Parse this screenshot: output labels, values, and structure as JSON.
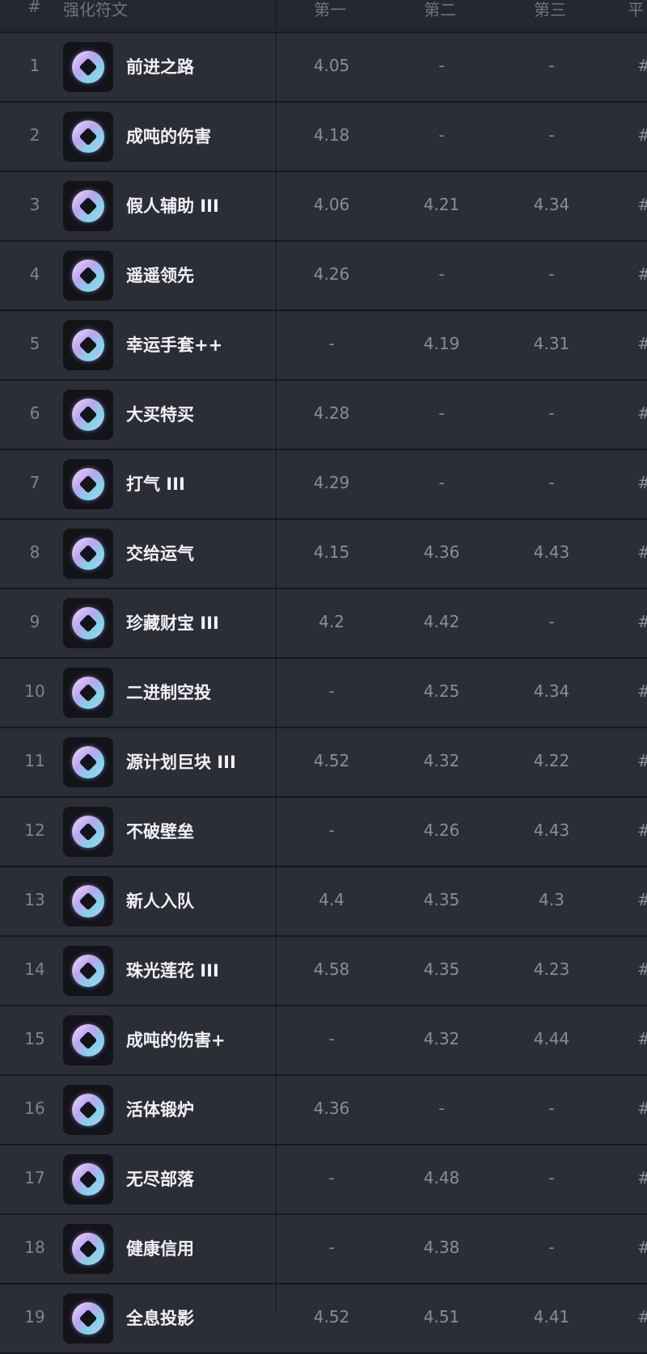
{
  "header": {
    "rank": "#",
    "name": "强化符文",
    "first": "第一",
    "second": "第二",
    "third": "第三",
    "avg": "平"
  },
  "rows": [
    {
      "rank": "1",
      "name": "前进之路",
      "icon": "arrow-up-emblem-icon",
      "first": "4.05",
      "second": "-",
      "third": "-",
      "avg": "#"
    },
    {
      "rank": "2",
      "name": "成吨的伤害",
      "icon": "swirl-icon",
      "first": "4.18",
      "second": "-",
      "third": "-",
      "avg": "#"
    },
    {
      "rank": "3",
      "name": "假人辅助 III",
      "icon": "dummy-icon",
      "first": "4.06",
      "second": "4.21",
      "third": "4.34",
      "avg": "#"
    },
    {
      "rank": "4",
      "name": "遥遥领先",
      "icon": "money-bag-slash-icon",
      "first": "4.26",
      "second": "-",
      "third": "-",
      "avg": "#"
    },
    {
      "rank": "5",
      "name": "幸运手套++",
      "icon": "paw-glove-icon",
      "first": "-",
      "second": "4.19",
      "third": "4.31",
      "avg": "#"
    },
    {
      "rank": "6",
      "name": "大买特买",
      "icon": "coin-plus-icon",
      "first": "4.28",
      "second": "-",
      "third": "-",
      "avg": "#"
    },
    {
      "rank": "7",
      "name": "打气 III",
      "icon": "burst-icon",
      "first": "4.29",
      "second": "-",
      "third": "-",
      "avg": "#"
    },
    {
      "rank": "8",
      "name": "交给运气",
      "icon": "dice-paw-icon",
      "first": "4.15",
      "second": "4.36",
      "third": "4.43",
      "avg": "#"
    },
    {
      "rank": "9",
      "name": "珍藏财宝 III",
      "icon": "mystery-box-icon",
      "first": "4.2",
      "second": "4.42",
      "third": "-",
      "avg": "#"
    },
    {
      "rank": "10",
      "name": "二进制空投",
      "icon": "parachute-box-icon",
      "first": "-",
      "second": "4.25",
      "third": "4.34",
      "avg": "#"
    },
    {
      "rank": "11",
      "name": "源计划巨块 III",
      "icon": "heart-box-icon",
      "first": "4.52",
      "second": "4.32",
      "third": "4.22",
      "avg": "#"
    },
    {
      "rank": "12",
      "name": "不破壁垒",
      "icon": "shield-icon",
      "first": "-",
      "second": "4.26",
      "third": "4.43",
      "avg": "#"
    },
    {
      "rank": "13",
      "name": "新人入队",
      "icon": "helmet-flag-icon",
      "first": "4.4",
      "second": "4.35",
      "third": "4.3",
      "avg": "#"
    },
    {
      "rank": "14",
      "name": "珠光莲花 III",
      "icon": "lotus-icon",
      "first": "4.58",
      "second": "4.35",
      "third": "4.23",
      "avg": "#"
    },
    {
      "rank": "15",
      "name": "成吨的伤害+",
      "icon": "swirl-icon",
      "first": "-",
      "second": "4.32",
      "third": "4.44",
      "avg": "#"
    },
    {
      "rank": "16",
      "name": "活体锻炉",
      "icon": "anvil-icon",
      "first": "4.36",
      "second": "-",
      "third": "-",
      "avg": "#"
    },
    {
      "rank": "17",
      "name": "无尽部落",
      "icon": "helmet-icon",
      "first": "-",
      "second": "4.48",
      "third": "-",
      "avg": "#"
    },
    {
      "rank": "18",
      "name": "健康信用",
      "icon": "money-bag-icon",
      "first": "-",
      "second": "4.38",
      "third": "-",
      "avg": "#"
    },
    {
      "rank": "19",
      "name": "全息投影",
      "icon": "hologram-figure-icon",
      "first": "4.52",
      "second": "4.51",
      "third": "4.41",
      "avg": "#"
    }
  ]
}
